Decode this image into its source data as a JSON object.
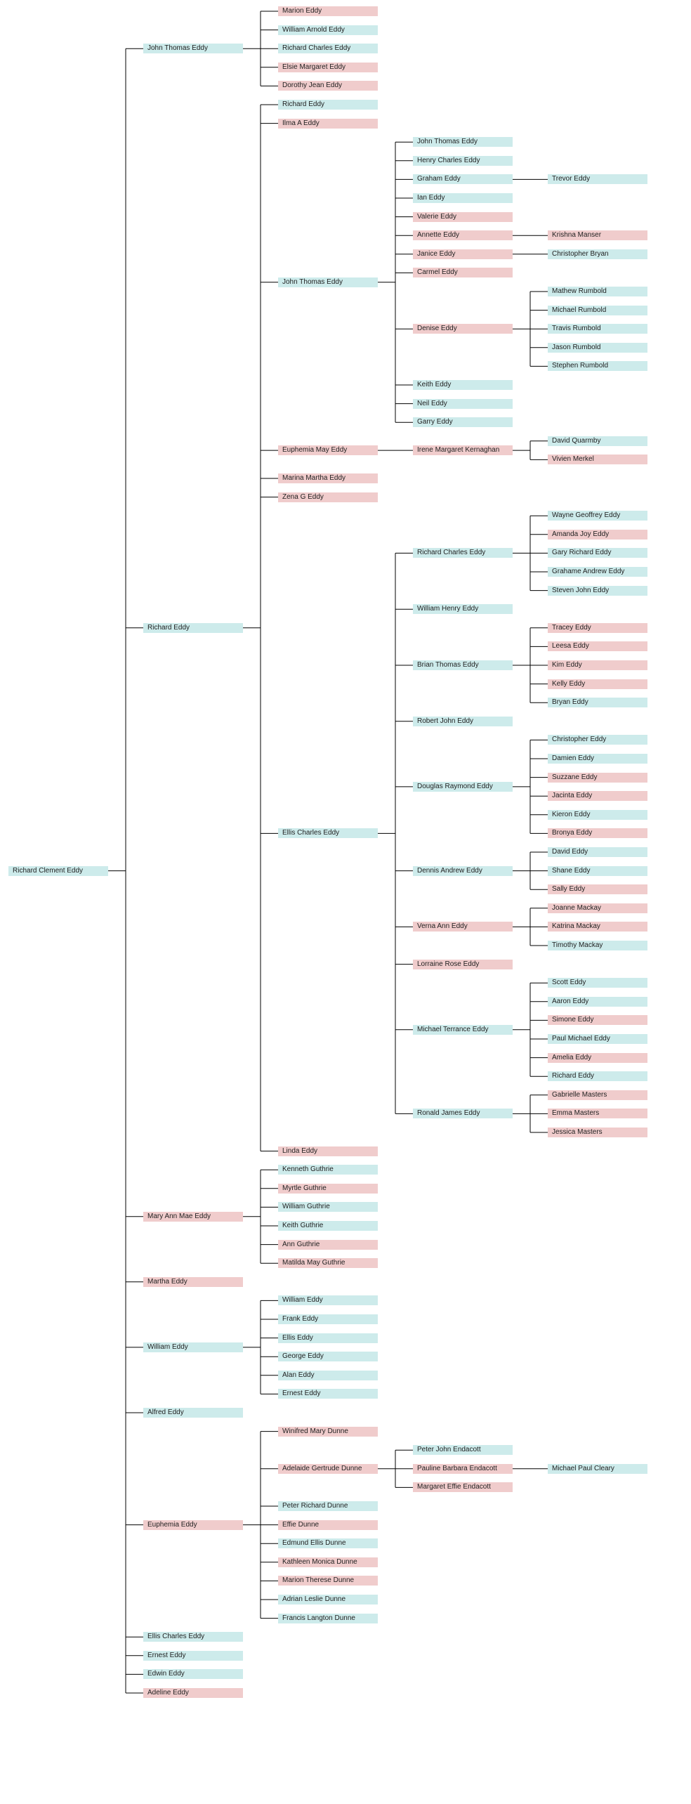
{
  "colors": {
    "male": "#cdebeb",
    "female": "#f0cccc",
    "line": "#000000"
  },
  "tree": {
    "n": "Richard Clement Eddy",
    "s": "m",
    "c": [
      {
        "n": "John Thomas Eddy",
        "s": "m",
        "c": [
          {
            "n": "Marion Eddy",
            "s": "f"
          },
          {
            "n": "William Arnold Eddy",
            "s": "m"
          },
          {
            "n": "Richard Charles Eddy",
            "s": "m"
          },
          {
            "n": "Elsie Margaret Eddy",
            "s": "f"
          },
          {
            "n": "Dorothy Jean Eddy",
            "s": "f"
          }
        ]
      },
      {
        "n": "Richard Eddy",
        "s": "m",
        "c": [
          {
            "n": "Richard Eddy",
            "s": "m"
          },
          {
            "n": "Ilma A Eddy",
            "s": "f"
          },
          {
            "n": "John Thomas Eddy",
            "s": "m",
            "c": [
              {
                "n": "John Thomas Eddy",
                "s": "m"
              },
              {
                "n": "Henry Charles Eddy",
                "s": "m"
              },
              {
                "n": "Graham Eddy",
                "s": "m",
                "c": [
                  {
                    "n": "Trevor Eddy",
                    "s": "m"
                  }
                ]
              },
              {
                "n": "Ian Eddy",
                "s": "m"
              },
              {
                "n": "Valerie Eddy",
                "s": "f"
              },
              {
                "n": "Annette Eddy",
                "s": "f",
                "c": [
                  {
                    "n": "Krishna Manser",
                    "s": "f"
                  }
                ]
              },
              {
                "n": "Janice Eddy",
                "s": "f",
                "c": [
                  {
                    "n": "Christopher Bryan",
                    "s": "m"
                  }
                ]
              },
              {
                "n": "Carmel Eddy",
                "s": "f"
              },
              {
                "n": "Denise Eddy",
                "s": "f",
                "c": [
                  {
                    "n": "Mathew Rumbold",
                    "s": "m"
                  },
                  {
                    "n": "Michael Rumbold",
                    "s": "m"
                  },
                  {
                    "n": "Travis Rumbold",
                    "s": "m"
                  },
                  {
                    "n": "Jason Rumbold",
                    "s": "m"
                  },
                  {
                    "n": "Stephen Rumbold",
                    "s": "m"
                  }
                ]
              },
              {
                "n": "Keith Eddy",
                "s": "m"
              },
              {
                "n": "Neil Eddy",
                "s": "m"
              },
              {
                "n": "Garry Eddy",
                "s": "m"
              }
            ]
          },
          {
            "n": "Euphemia May Eddy",
            "s": "f",
            "c": [
              {
                "n": "Irene Margaret Kernaghan",
                "s": "f",
                "c": [
                  {
                    "n": "David Quarmby",
                    "s": "m"
                  },
                  {
                    "n": "Vivien Merkel",
                    "s": "f"
                  }
                ]
              }
            ]
          },
          {
            "n": "Marina Martha Eddy",
            "s": "f"
          },
          {
            "n": "Zena G Eddy",
            "s": "f"
          },
          {
            "n": "Ellis Charles Eddy",
            "s": "m",
            "c": [
              {
                "n": "Richard Charles Eddy",
                "s": "m",
                "c": [
                  {
                    "n": "Wayne Geoffrey Eddy",
                    "s": "m"
                  },
                  {
                    "n": "Amanda Joy Eddy",
                    "s": "f"
                  },
                  {
                    "n": "Gary Richard Eddy",
                    "s": "m"
                  },
                  {
                    "n": "Grahame Andrew Eddy",
                    "s": "m"
                  },
                  {
                    "n": "Steven John Eddy",
                    "s": "m"
                  }
                ]
              },
              {
                "n": "William Henry Eddy",
                "s": "m"
              },
              {
                "n": "Brian Thomas Eddy",
                "s": "m",
                "c": [
                  {
                    "n": "Tracey Eddy",
                    "s": "f"
                  },
                  {
                    "n": "Leesa Eddy",
                    "s": "f"
                  },
                  {
                    "n": "Kim Eddy",
                    "s": "f"
                  },
                  {
                    "n": "Kelly Eddy",
                    "s": "f"
                  },
                  {
                    "n": "Bryan Eddy",
                    "s": "m"
                  }
                ]
              },
              {
                "n": "Robert John Eddy",
                "s": "m"
              },
              {
                "n": "Douglas Raymond Eddy",
                "s": "m",
                "c": [
                  {
                    "n": "Christopher Eddy",
                    "s": "m"
                  },
                  {
                    "n": "Damien Eddy",
                    "s": "m"
                  },
                  {
                    "n": "Suzzane Eddy",
                    "s": "f"
                  },
                  {
                    "n": "Jacinta Eddy",
                    "s": "f"
                  },
                  {
                    "n": "Kieron Eddy",
                    "s": "m"
                  },
                  {
                    "n": "Bronya Eddy",
                    "s": "f"
                  }
                ]
              },
              {
                "n": "Dennis Andrew Eddy",
                "s": "m",
                "c": [
                  {
                    "n": "David Eddy",
                    "s": "m"
                  },
                  {
                    "n": "Shane Eddy",
                    "s": "m"
                  },
                  {
                    "n": "Sally Eddy",
                    "s": "f"
                  }
                ]
              },
              {
                "n": "Verna Ann Eddy",
                "s": "f",
                "c": [
                  {
                    "n": "Joanne Mackay",
                    "s": "f"
                  },
                  {
                    "n": "Katrina Mackay",
                    "s": "f"
                  },
                  {
                    "n": "Timothy Mackay",
                    "s": "m"
                  }
                ]
              },
              {
                "n": "Lorraine Rose Eddy",
                "s": "f"
              },
              {
                "n": "Michael Terrance Eddy",
                "s": "m",
                "c": [
                  {
                    "n": "Scott Eddy",
                    "s": "m"
                  },
                  {
                    "n": "Aaron Eddy",
                    "s": "m"
                  },
                  {
                    "n": "Simone Eddy",
                    "s": "f"
                  },
                  {
                    "n": "Paul Michael Eddy",
                    "s": "m"
                  },
                  {
                    "n": "Amelia Eddy",
                    "s": "f"
                  },
                  {
                    "n": "Richard Eddy",
                    "s": "m"
                  }
                ]
              },
              {
                "n": "Ronald James Eddy",
                "s": "m",
                "c": [
                  {
                    "n": "Gabrielle Masters",
                    "s": "f"
                  },
                  {
                    "n": "Emma Masters",
                    "s": "f"
                  },
                  {
                    "n": "Jessica Masters",
                    "s": "f"
                  }
                ]
              }
            ]
          },
          {
            "n": "Linda Eddy",
            "s": "f"
          }
        ]
      },
      {
        "n": "Mary Ann Mae Eddy",
        "s": "f",
        "c": [
          {
            "n": "Kenneth Guthrie",
            "s": "m"
          },
          {
            "n": "Myrtle Guthrie",
            "s": "f"
          },
          {
            "n": "William Guthrie",
            "s": "m"
          },
          {
            "n": "Keith Guthrie",
            "s": "m"
          },
          {
            "n": "Ann Guthrie",
            "s": "f"
          },
          {
            "n": "Matilda May Guthrie",
            "s": "f"
          }
        ]
      },
      {
        "n": "Martha Eddy",
        "s": "f"
      },
      {
        "n": "William Eddy",
        "s": "m",
        "c": [
          {
            "n": "William Eddy",
            "s": "m"
          },
          {
            "n": "Frank Eddy",
            "s": "m"
          },
          {
            "n": "Ellis Eddy",
            "s": "m"
          },
          {
            "n": "George Eddy",
            "s": "m"
          },
          {
            "n": "Alan Eddy",
            "s": "m"
          },
          {
            "n": "Ernest Eddy",
            "s": "m"
          }
        ]
      },
      {
        "n": "Alfred Eddy",
        "s": "m"
      },
      {
        "n": "Euphemia Eddy",
        "s": "f",
        "c": [
          {
            "n": "Winifred Mary Dunne",
            "s": "f"
          },
          {
            "n": "Adelaide Gertrude Dunne",
            "s": "f",
            "c": [
              {
                "n": "Peter John Endacott",
                "s": "m"
              },
              {
                "n": "Pauline Barbara Endacott",
                "s": "f",
                "c": [
                  {
                    "n": "Michael Paul Cleary",
                    "s": "m"
                  }
                ]
              },
              {
                "n": "Margaret Effie Endacott",
                "s": "f"
              }
            ]
          },
          {
            "n": "Peter Richard Dunne",
            "s": "m"
          },
          {
            "n": "Effie Dunne",
            "s": "f"
          },
          {
            "n": "Edmund Ellis Dunne",
            "s": "m"
          },
          {
            "n": "Kathleen Monica Dunne",
            "s": "f"
          },
          {
            "n": "Marion Therese Dunne",
            "s": "f"
          },
          {
            "n": "Adrian Leslie Dunne",
            "s": "m"
          },
          {
            "n": "Francis Langton Dunne",
            "s": "m"
          }
        ]
      },
      {
        "n": "Ellis Charles Eddy",
        "s": "m"
      },
      {
        "n": "Ernest Eddy",
        "s": "m"
      },
      {
        "n": "Edwin Eddy",
        "s": "m"
      },
      {
        "n": "Adeline Eddy",
        "s": "f"
      }
    ]
  }
}
